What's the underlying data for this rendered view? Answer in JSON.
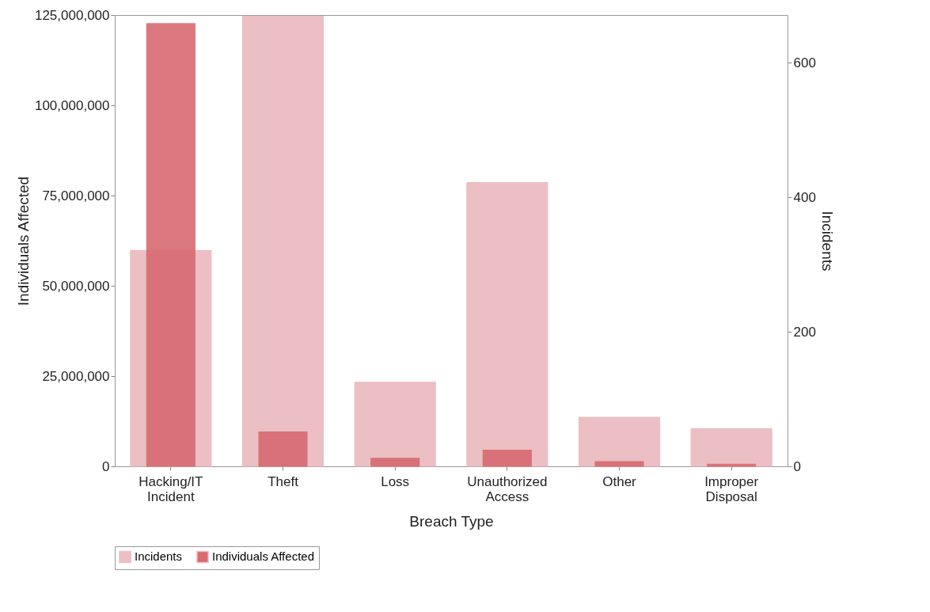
{
  "chart_data": {
    "type": "bar",
    "xlabel": "Breach Type",
    "ylabel": "Individuals Affected",
    "y2label": "Incidents",
    "categories": [
      "Hacking/IT Incident",
      "Theft",
      "Loss",
      "Unauthorized Access",
      "Other",
      "Improper Disposal"
    ],
    "series": [
      {
        "name": "Incidents",
        "color": "#ebbfc3",
        "axis": "y2",
        "values": [
          321,
          669,
          125,
          422,
          73,
          56
        ]
      },
      {
        "name": "Individuals Affected",
        "color": "#d86a70",
        "values": [
          122600000,
          9500000,
          2200000,
          4500000,
          1300000,
          600000
        ]
      }
    ],
    "ylim": [
      0,
      125000000
    ],
    "yticks": [
      {
        "value": 0,
        "label": "0"
      },
      {
        "value": 25000000,
        "label": "25,000,000"
      },
      {
        "value": 50000000,
        "label": "50,000,000"
      },
      {
        "value": 75000000,
        "label": "75,000,000"
      },
      {
        "value": 100000000,
        "label": "100,000,000"
      },
      {
        "value": 125000000,
        "label": "125,000,000"
      }
    ],
    "y2lim": [
      0,
      671
    ],
    "y2ticks": [
      0,
      200,
      400,
      600
    ],
    "grid": false,
    "legend": "bottom"
  }
}
